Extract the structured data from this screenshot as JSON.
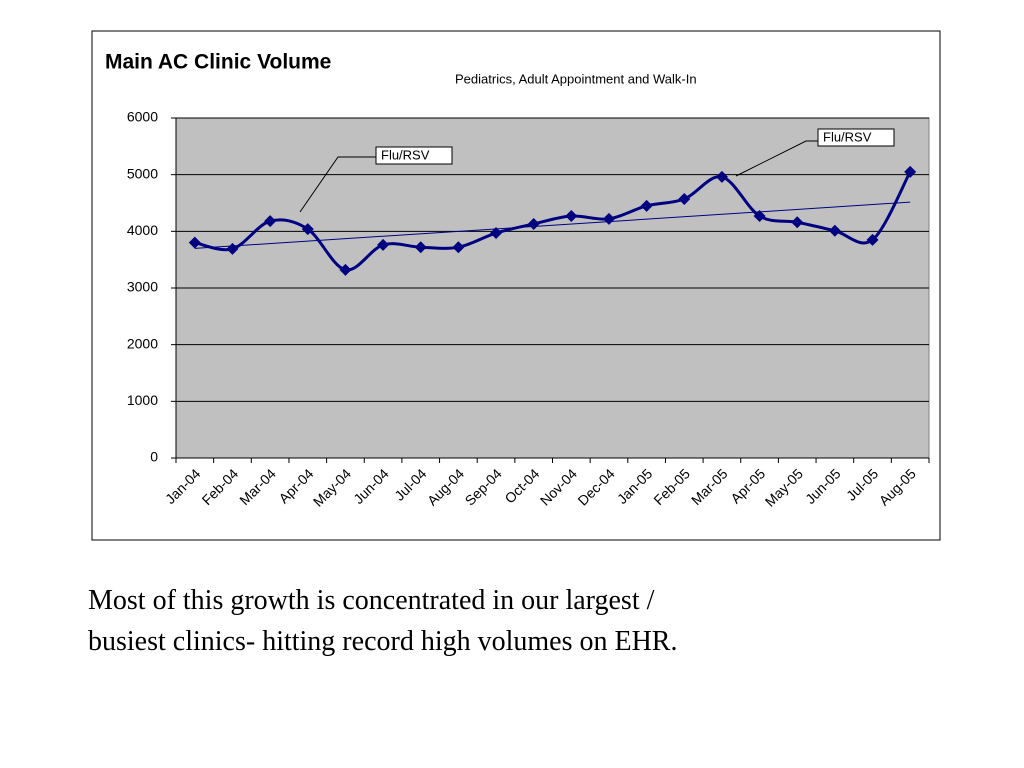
{
  "chart_data": {
    "type": "line",
    "title": "Main AC Clinic Volume",
    "subtitle": "Pediatrics, Adult Appointment and Walk-In",
    "categories": [
      "Jan-04",
      "Feb-04",
      "Mar-04",
      "Apr-04",
      "May-04",
      "Jun-04",
      "Jul-04",
      "Aug-04",
      "Sep-04",
      "Oct-04",
      "Nov-04",
      "Dec-04",
      "Jan-05",
      "Feb-05",
      "Mar-05",
      "Apr-05",
      "May-05",
      "Jun-05",
      "Jul-05",
      "Aug-05"
    ],
    "values": [
      3800,
      3690,
      4180,
      4040,
      3320,
      3760,
      3720,
      3720,
      3970,
      4130,
      4270,
      4220,
      4450,
      4570,
      4960,
      4270,
      4160,
      4010,
      3850,
      5050
    ],
    "color": "#000080",
    "ylim": [
      0,
      6000
    ],
    "yticks": [
      0,
      1000,
      2000,
      3000,
      4000,
      5000,
      6000
    ],
    "grid": true,
    "trendline": true,
    "annotations": [
      "Flu/RSV",
      "Flu/RSV"
    ]
  },
  "text": "Most of this growth is concentrated in our largest / busiest clinics- hitting record high volumes on EHR."
}
